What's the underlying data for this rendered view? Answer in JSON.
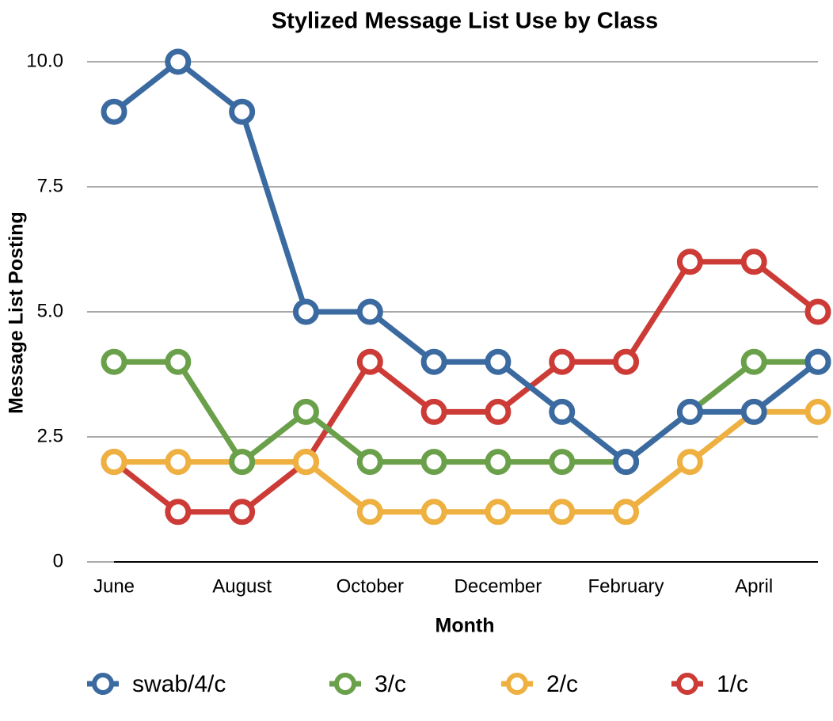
{
  "chart_data": {
    "type": "line",
    "title": "Stylized Message List Use by Class",
    "x_label": "Month",
    "y_label": "Message List Posting",
    "categories": [
      "June",
      null,
      "August",
      null,
      "October",
      null,
      "December",
      null,
      "February",
      null,
      "April",
      null
    ],
    "series": [
      {
        "name": "swab/4/c",
        "color": "#3b6aa0",
        "values": [
          9,
          10,
          9,
          5,
          5,
          4,
          4,
          3,
          2,
          3,
          3,
          4
        ]
      },
      {
        "name": "3/c",
        "color": "#6aa04a",
        "values": [
          4,
          4,
          2,
          3,
          2,
          2,
          2,
          2,
          2,
          3,
          4,
          4
        ]
      },
      {
        "name": "2/c",
        "color": "#eeb040",
        "values": [
          2,
          2,
          2,
          2,
          1,
          1,
          1,
          1,
          1,
          2,
          3,
          3
        ]
      },
      {
        "name": "1/c",
        "color": "#cc3b36",
        "values": [
          2,
          1,
          1,
          2,
          4,
          3,
          3,
          4,
          4,
          6,
          6,
          5
        ]
      }
    ],
    "ylim": [
      0,
      10
    ],
    "yticks": [
      0,
      2.5,
      {
        "value": 5,
        "label": "5.0"
      },
      7.5,
      {
        "value": 10,
        "label": "10.0"
      }
    ],
    "grid": true,
    "legend": "bottom"
  }
}
